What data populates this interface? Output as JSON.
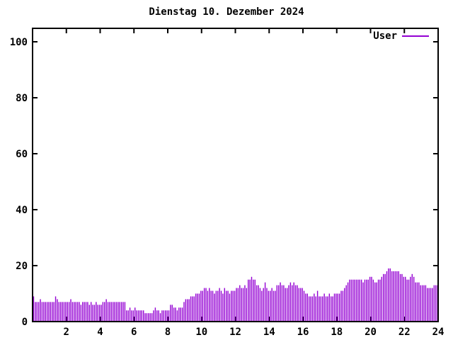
{
  "page": {
    "background": "#ffffff",
    "border_color": "#000000",
    "text_color": "#000000"
  },
  "chart_data": {
    "type": "bar",
    "bar_style": "impulses",
    "title": "Dienstag 10. Dezember 2024",
    "xlabel": "",
    "ylabel": "",
    "xlim": [
      0,
      24
    ],
    "ylim": [
      0,
      104.8
    ],
    "x_ticks": [
      2,
      4,
      6,
      8,
      10,
      12,
      14,
      16,
      18,
      20,
      22,
      24
    ],
    "y_ticks": [
      0,
      20,
      40,
      60,
      80,
      100
    ],
    "grid": false,
    "legend_position": "top-right-inside",
    "x_start": 0,
    "sample_interval_hours": 0.1,
    "series": [
      {
        "name": "User",
        "color": "#9400d3",
        "values": [
          9,
          7,
          7,
          7,
          8,
          7,
          7,
          7,
          7,
          7,
          7,
          7,
          7,
          9,
          8,
          7,
          7,
          7,
          7,
          7,
          7,
          7,
          8,
          7,
          7,
          7,
          7,
          7,
          6,
          7,
          7,
          7,
          7,
          6,
          7,
          6,
          6,
          7,
          6,
          6,
          6,
          7,
          7,
          8,
          7,
          7,
          7,
          7,
          7,
          7,
          7,
          7,
          7,
          7,
          7,
          4,
          4,
          5,
          4,
          4,
          5,
          4,
          4,
          4,
          4,
          4,
          3,
          3,
          3,
          3,
          3,
          4,
          5,
          4,
          4,
          3,
          4,
          4,
          4,
          4,
          4,
          6,
          6,
          5,
          5,
          4,
          5,
          5,
          5,
          7,
          8,
          8,
          8,
          9,
          9,
          9,
          10,
          10,
          10,
          11,
          11,
          12,
          12,
          11,
          12,
          11,
          11,
          10,
          11,
          11,
          12,
          11,
          10,
          12,
          11,
          11,
          10,
          11,
          11,
          11,
          12,
          12,
          13,
          12,
          12,
          13,
          12,
          15,
          15,
          16,
          15,
          15,
          13,
          13,
          12,
          11,
          12,
          14,
          12,
          11,
          11,
          12,
          11,
          11,
          13,
          13,
          14,
          13,
          13,
          12,
          12,
          13,
          14,
          13,
          14,
          13,
          13,
          12,
          12,
          12,
          11,
          10,
          10,
          9,
          9,
          9,
          10,
          9,
          11,
          9,
          9,
          9,
          10,
          9,
          9,
          10,
          9,
          9,
          10,
          10,
          10,
          10,
          11,
          11,
          12,
          13,
          14,
          15,
          15,
          15,
          15,
          15,
          15,
          15,
          15,
          14,
          15,
          15,
          15,
          16,
          16,
          15,
          14,
          14,
          15,
          15,
          16,
          17,
          17,
          18,
          19,
          19,
          18,
          18,
          18,
          18,
          18,
          17,
          17,
          16,
          16,
          15,
          15,
          16,
          17,
          16,
          14,
          14,
          14,
          13,
          13,
          13,
          13,
          12,
          12,
          12,
          12,
          13,
          13,
          13
        ]
      }
    ]
  }
}
